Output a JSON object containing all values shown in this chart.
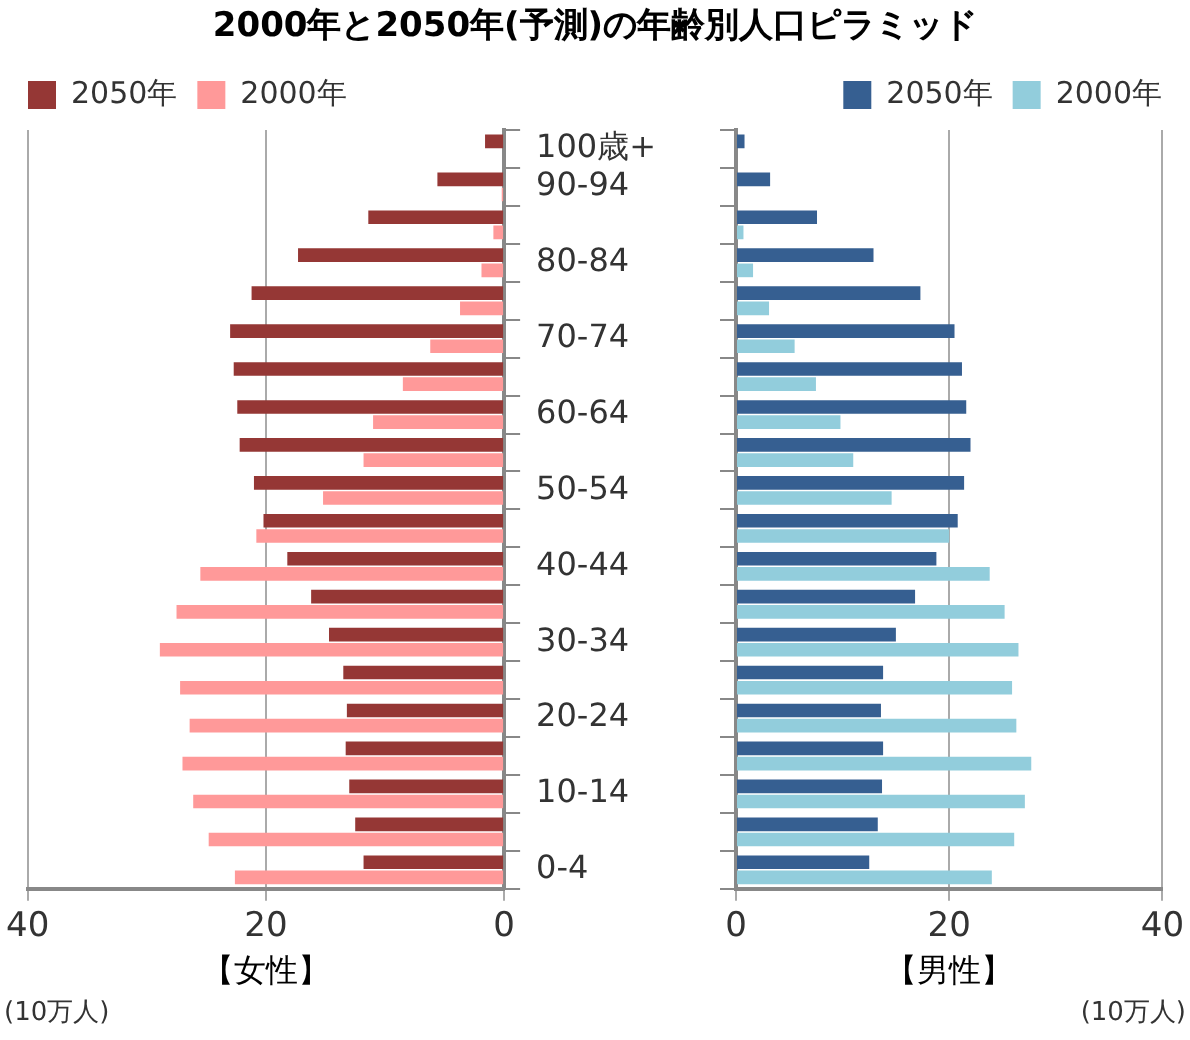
{
  "chart_data": [
    {
      "type": "bar",
      "orientation": "horizontal",
      "title": "2000年と2050年(予測)の年齢別人口ピラミッド",
      "xlabel": "【女性】",
      "annotations": [
        "(10万人)"
      ],
      "categories": [
        "100歳+",
        "90-94",
        null,
        "80-84",
        null,
        "70-74",
        null,
        "60-64",
        null,
        "50-54",
        null,
        "40-44",
        null,
        "30-34",
        null,
        "20-24",
        null,
        "10-14",
        null,
        "0-4"
      ],
      "series": [
        {
          "name": "2050年",
          "color": "#953735",
          "values": [
            1.6,
            5.6,
            11.4,
            17.3,
            21.2,
            23.0,
            22.7,
            22.4,
            22.2,
            21.0,
            20.2,
            18.2,
            16.2,
            14.7,
            13.5,
            13.2,
            13.3,
            13.0,
            12.5,
            11.8
          ]
        },
        {
          "name": "2000年",
          "color": "#ff9999",
          "values": [
            0,
            0.2,
            0.9,
            1.9,
            3.7,
            6.2,
            8.5,
            11.0,
            11.8,
            15.2,
            20.8,
            25.5,
            27.5,
            28.9,
            27.2,
            26.4,
            27.0,
            26.1,
            24.8,
            22.6
          ]
        }
      ],
      "xlim": [
        40,
        0
      ],
      "xticks": [
        40,
        20,
        0
      ],
      "grid": "x",
      "legend": "top left"
    },
    {
      "type": "bar",
      "orientation": "horizontal",
      "xlabel": "【男性】",
      "annotations": [
        "(10万人)"
      ],
      "categories": [
        null,
        null,
        null,
        null,
        null,
        null,
        null,
        null,
        null,
        null,
        null,
        null,
        null,
        null,
        null,
        null,
        null,
        null,
        null,
        null
      ],
      "series": [
        {
          "name": "2050年",
          "color": "#365f91",
          "values": [
            0.8,
            3.2,
            7.6,
            12.9,
            17.3,
            20.5,
            21.2,
            21.6,
            22.0,
            21.4,
            20.8,
            18.8,
            16.8,
            15.0,
            13.8,
            13.6,
            13.8,
            13.7,
            13.3,
            12.5
          ]
        },
        {
          "name": "2000年",
          "color": "#92cddc",
          "values": [
            0,
            0,
            0.7,
            1.6,
            3.1,
            5.5,
            7.5,
            9.8,
            11.0,
            14.6,
            20.0,
            23.8,
            25.2,
            26.5,
            25.9,
            26.3,
            27.7,
            27.1,
            26.1,
            24.0
          ]
        }
      ],
      "xlim": [
        0,
        40
      ],
      "xticks": [
        0,
        20,
        40
      ],
      "grid": "x",
      "legend": "top right"
    }
  ]
}
